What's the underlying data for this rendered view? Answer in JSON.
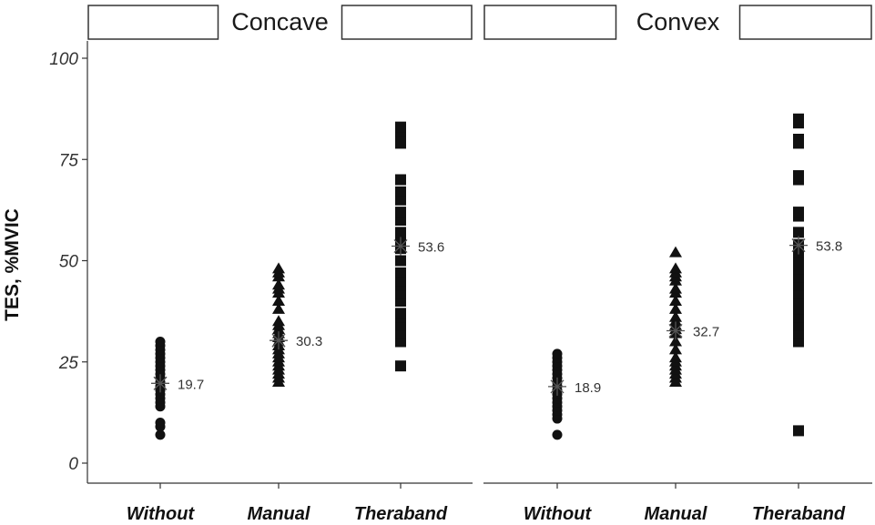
{
  "chart_data": {
    "type": "scatter",
    "ylabel": "TES, %MVIC",
    "ylim": [
      0,
      100
    ],
    "yticks": [
      0,
      25,
      50,
      75,
      100
    ],
    "categories": [
      "Without",
      "Manual",
      "Theraband"
    ],
    "grid": false,
    "panels": [
      {
        "title": "Concave",
        "groups": [
          {
            "category": "Without",
            "marker": "circle",
            "values": [
              7,
              9,
              10,
              14,
              15,
              16,
              17,
              18,
              18.5,
              19,
              20,
              21,
              22,
              23,
              24,
              25,
              26,
              27,
              28,
              29,
              30
            ],
            "mean": 19.7,
            "mean_label": "19.7"
          },
          {
            "category": "Manual",
            "marker": "triangle",
            "values": [
              20,
              21,
              22,
              23,
              24,
              25,
              26,
              27,
              28,
              29,
              30,
              31,
              32,
              33,
              34,
              35,
              38,
              40,
              42,
              43,
              44,
              46,
              47,
              48
            ],
            "mean": 30.3,
            "mean_label": "30.3"
          },
          {
            "category": "Theraband",
            "marker": "square",
            "values": [
              24,
              30,
              32,
              34,
              36,
              37,
              40,
              42,
              44,
              45,
              47,
              50,
              53,
              55,
              57,
              60,
              62,
              65,
              67,
              70,
              79,
              80,
              82,
              83
            ],
            "mean": 53.6,
            "mean_label": "53.6"
          }
        ]
      },
      {
        "title": "Convex",
        "groups": [
          {
            "category": "Without",
            "marker": "circle",
            "values": [
              7,
              11,
              12,
              13,
              14,
              15,
              16,
              17,
              18,
              19,
              20,
              21,
              22,
              23,
              24,
              25,
              26,
              27
            ],
            "mean": 18.9,
            "mean_label": "18.9"
          },
          {
            "category": "Manual",
            "marker": "triangle",
            "values": [
              20,
              21,
              22,
              23,
              24,
              25,
              26,
              28,
              30,
              32,
              33,
              34,
              35,
              36,
              38,
              40,
              42,
              43,
              45,
              46,
              47,
              48,
              52
            ],
            "mean": 32.7,
            "mean_label": "32.7"
          },
          {
            "category": "Theraband",
            "marker": "square",
            "values": [
              8,
              30,
              32,
              34,
              36,
              38,
              40,
              42,
              44,
              46,
              48,
              50,
              52,
              54,
              57,
              61,
              62,
              70,
              71,
              79,
              80,
              84,
              85
            ],
            "mean": 53.8,
            "mean_label": "53.8"
          }
        ]
      }
    ]
  }
}
